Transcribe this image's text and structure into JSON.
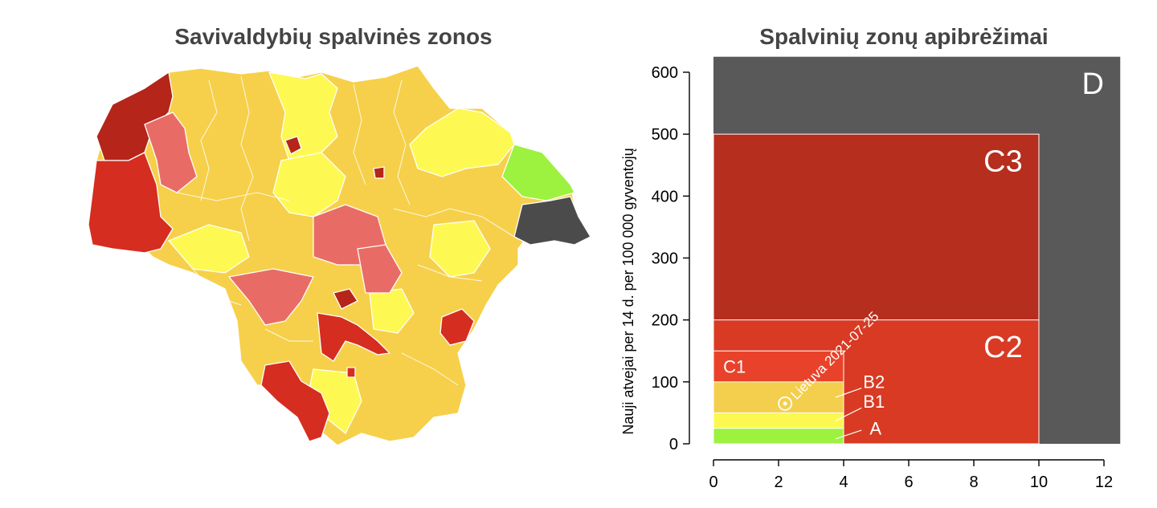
{
  "map": {
    "title": "Savivaldybių spalvinės zonos",
    "colors": {
      "A": "#9CF23F",
      "B1": "#FDF952",
      "B2": "#F6D04A",
      "C1": "#E86C65",
      "C2": "#D52D20",
      "C3": "#B52519",
      "D": "#4B4B4B"
    }
  },
  "chart_data": {
    "type": "area",
    "title": "Spalvinių zonų apibrėžimai",
    "xlabel": "",
    "ylabel": "Nauji atvejai per 14 d. per 100 000 gyventojų",
    "xlim": [
      0,
      12
    ],
    "ylim": [
      0,
      600
    ],
    "x_ticks": [
      0,
      2,
      4,
      6,
      8,
      10,
      12
    ],
    "y_ticks": [
      0,
      100,
      200,
      300,
      400,
      500,
      600
    ],
    "zones": [
      {
        "name": "D",
        "x_max": 12.5,
        "y_min": 0,
        "y_max": 625,
        "color": "#595959"
      },
      {
        "name": "C3",
        "x_max": 10,
        "y_min": 0,
        "y_max": 500,
        "color": "#B52E1E"
      },
      {
        "name": "C2",
        "x_max": 10,
        "y_min": 0,
        "y_max": 200,
        "color": "#D83A23"
      },
      {
        "name": "C1",
        "x_max": 4,
        "y_min": 0,
        "y_max": 150,
        "color": "#E8432A"
      },
      {
        "name": "B2",
        "x_max": 4,
        "y_min": 0,
        "y_max": 100,
        "color": "#F4CF4D"
      },
      {
        "name": "B1",
        "x_max": 4,
        "y_min": 0,
        "y_max": 50,
        "color": "#FBF852"
      },
      {
        "name": "A",
        "x_max": 4,
        "y_min": 0,
        "y_max": 25,
        "color": "#9CF23F"
      }
    ],
    "zone_labels": [
      "D",
      "C3",
      "C2",
      "C1",
      "B2",
      "B1",
      "A"
    ],
    "point": {
      "label": "Lietuva 2021-07-25",
      "x": 2.2,
      "y": 65
    }
  }
}
